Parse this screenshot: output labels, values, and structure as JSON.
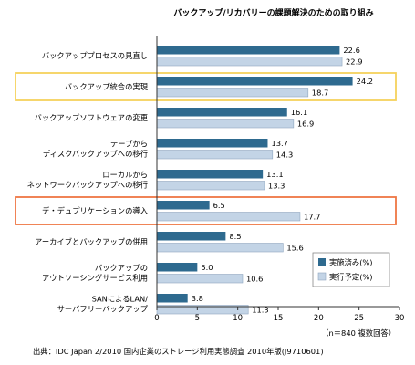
{
  "chart_data": {
    "type": "bar",
    "orientation": "horizontal",
    "title": "バックアップ/リカバリーの課題解決のための取り組み",
    "categories": [
      [
        "バックアッププロセスの見直し"
      ],
      [
        "バックアップ統合の実現"
      ],
      [
        "バックアップソフトウェアの変更"
      ],
      [
        "テープから",
        "ディスクバックアップへの移行"
      ],
      [
        "ローカルから",
        "ネットワークバックアップへの移行"
      ],
      [
        "デ・デュプリケーションの導入"
      ],
      [
        "アーカイブとバックアップの併用"
      ],
      [
        "バックアップの",
        "アウトソーシングサービス利用"
      ],
      [
        "SANによるLAN/",
        "サーバフリーバックアップ"
      ]
    ],
    "highlighted_categories": [
      1,
      5
    ],
    "series": [
      {
        "name": "実施済み(%)",
        "values": [
          22.6,
          24.2,
          16.1,
          13.7,
          13.1,
          6.5,
          8.5,
          5.0,
          3.8
        ]
      },
      {
        "name": "実行予定(%)",
        "values": [
          22.9,
          18.7,
          16.9,
          14.3,
          13.3,
          17.7,
          15.6,
          10.6,
          11.3
        ]
      }
    ],
    "value_labels": [
      [
        "22.6",
        "24.2",
        "16.1",
        "13.7",
        "13.1",
        "6.5",
        "8.5",
        "5.0",
        "3.8"
      ],
      [
        "22.9",
        "18.7",
        "16.9",
        "14.3",
        "13.3",
        "17.7",
        "15.6",
        "10.6",
        "11.3"
      ]
    ],
    "xlim": [
      0,
      30
    ],
    "xticks": [
      "0",
      "5",
      "10",
      "15",
      "20",
      "25",
      "30"
    ],
    "grid": false,
    "legend_position": "bottom-right",
    "note": "（n＝840 複数回答）",
    "source": "出典：IDC Japan 2/2010 国内企業のストレージ利用実態調査 2010年版(J9710601)",
    "colors": {
      "series1": "#2e6a8f",
      "series2": "#c3d4e6",
      "series2_border": "#8fa6bf",
      "highlight_yellow": "#f5d15c",
      "highlight_orange": "#ee7644",
      "axis": "#333333"
    }
  }
}
